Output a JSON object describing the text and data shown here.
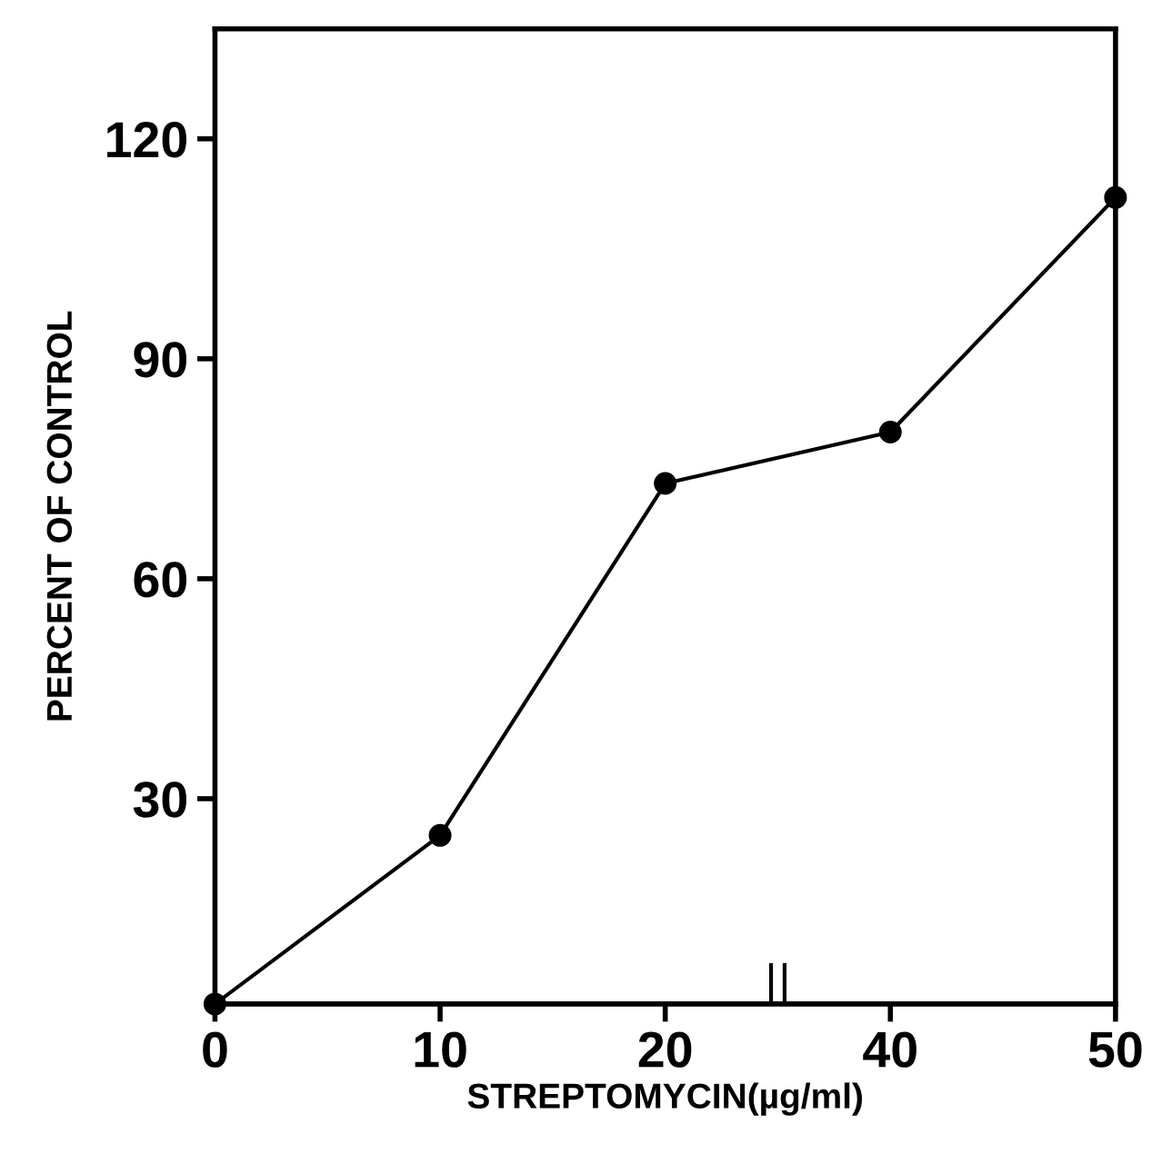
{
  "chart_data": {
    "type": "line",
    "xlabel": "STREPTOMYCIN(µg/ml)",
    "ylabel": "PERCENT OF CONTROL",
    "categories": [
      "0",
      "10",
      "20",
      "40",
      "50"
    ],
    "series": [
      {
        "color": "#000000",
        "values": [
          2,
          25,
          73,
          80,
          112
        ]
      }
    ],
    "ylim": [
      2,
      135
    ],
    "yticks": [
      30,
      60,
      90,
      120
    ],
    "marker": "circle",
    "line_style": "solid",
    "grid": false,
    "legend": false
  }
}
